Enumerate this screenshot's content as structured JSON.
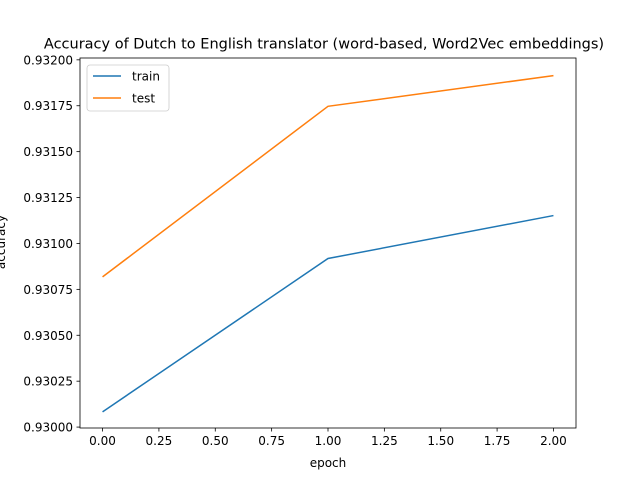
{
  "chart_data": {
    "type": "line",
    "title": "Accuracy of Dutch to English translator (word-based, Word2Vec embeddings)",
    "xlabel": "epoch",
    "ylabel": "accuracy",
    "x": [
      0,
      1,
      2
    ],
    "xlim": [
      -0.1,
      2.1
    ],
    "ylim": [
      0.929995,
      0.93201
    ],
    "xticks": [
      0.0,
      0.25,
      0.5,
      0.75,
      1.0,
      1.25,
      1.5,
      1.75,
      2.0
    ],
    "xtick_labels": [
      "0.00",
      "0.25",
      "0.50",
      "0.75",
      "1.00",
      "1.25",
      "1.50",
      "1.75",
      "2.00"
    ],
    "yticks": [
      0.93,
      0.93025,
      0.9305,
      0.93075,
      0.931,
      0.93125,
      0.9315,
      0.93175,
      0.932
    ],
    "ytick_labels": [
      "0.93000",
      "0.93025",
      "0.93050",
      "0.93075",
      "0.93100",
      "0.93125",
      "0.93150",
      "0.93175",
      "0.93200"
    ],
    "series": [
      {
        "name": "train",
        "color": "#1f77b4",
        "values": [
          0.930083,
          0.930918,
          0.931152
        ]
      },
      {
        "name": "test",
        "color": "#ff7f0e",
        "values": [
          0.930818,
          0.931747,
          0.931914
        ]
      }
    ],
    "grid": false,
    "legend": "top-left"
  }
}
